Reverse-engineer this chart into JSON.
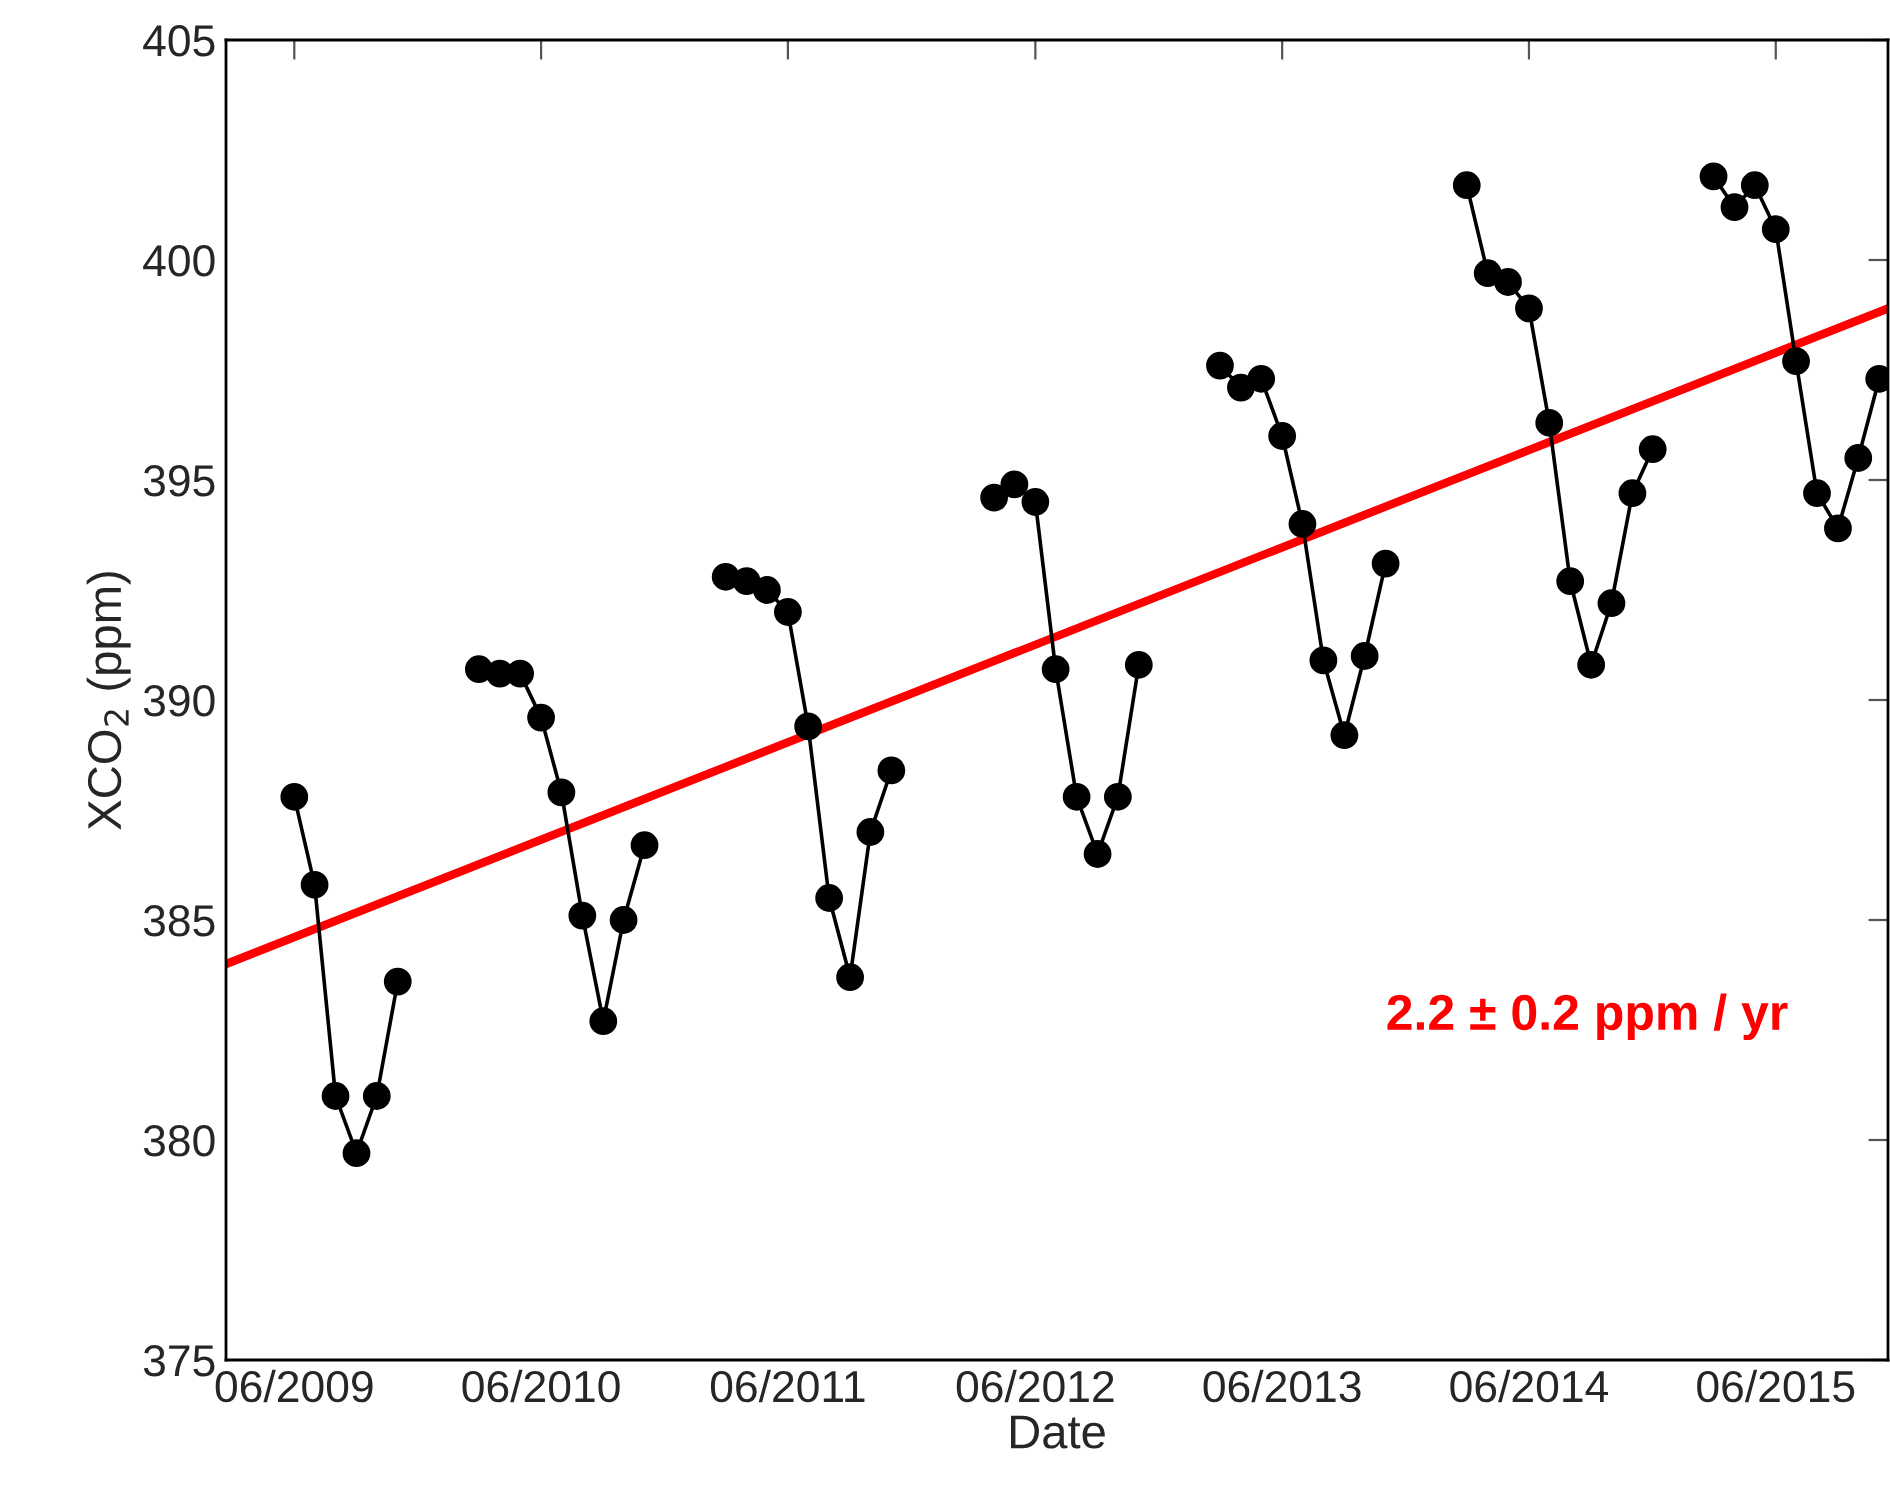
{
  "chart_data": {
    "type": "line",
    "xlabel": "Date",
    "ylabel": "XCO$_{2}$ (ppm)",
    "xlim": [
      "2009-02-20",
      "2015-11-14"
    ],
    "ylim": [
      375,
      405
    ],
    "xticks": [
      {
        "value": "2009-06",
        "label": "06/2009"
      },
      {
        "value": "2010-06",
        "label": "06/2010"
      },
      {
        "value": "2011-06",
        "label": "06/2011"
      },
      {
        "value": "2012-06",
        "label": "06/2012"
      },
      {
        "value": "2013-06",
        "label": "06/2013"
      },
      {
        "value": "2014-06",
        "label": "06/2014"
      },
      {
        "value": "2015-06",
        "label": "06/2015"
      }
    ],
    "yticks": [
      375,
      380,
      385,
      390,
      395,
      400,
      405
    ],
    "grid": false,
    "legend": false,
    "series": [
      {
        "color": "#000000",
        "marker": "circle",
        "x": [
          "2009-06",
          "2009-07",
          "2009-08",
          "2009-09",
          "2009-10",
          "2009-11"
        ],
        "values": [
          387.8,
          385.8,
          381.0,
          379.7,
          381.0,
          383.6
        ]
      },
      {
        "color": "#000000",
        "marker": "circle",
        "x": [
          "2010-03",
          "2010-04",
          "2010-05",
          "2010-06",
          "2010-07",
          "2010-08",
          "2010-09",
          "2010-10",
          "2010-11"
        ],
        "values": [
          390.7,
          390.6,
          390.6,
          389.6,
          387.9,
          385.1,
          382.7,
          385.0,
          386.7
        ]
      },
      {
        "color": "#000000",
        "marker": "circle",
        "x": [
          "2011-03",
          "2011-04",
          "2011-05",
          "2011-06",
          "2011-07",
          "2011-08",
          "2011-09",
          "2011-10",
          "2011-11"
        ],
        "values": [
          392.8,
          392.7,
          392.5,
          392.0,
          389.4,
          385.5,
          383.7,
          387.0,
          388.4
        ]
      },
      {
        "color": "#000000",
        "marker": "circle",
        "x": [
          "2012-04",
          "2012-05",
          "2012-06",
          "2012-07",
          "2012-08",
          "2012-09",
          "2012-10",
          "2012-11"
        ],
        "values": [
          394.6,
          394.9,
          394.5,
          390.7,
          387.8,
          386.5,
          387.8,
          390.8
        ]
      },
      {
        "color": "#000000",
        "marker": "circle",
        "x": [
          "2013-03",
          "2013-04",
          "2013-05",
          "2013-06",
          "2013-07",
          "2013-08",
          "2013-09",
          "2013-10",
          "2013-11"
        ],
        "values": [
          397.6,
          397.1,
          397.3,
          396.0,
          394.0,
          390.9,
          389.2,
          391.0,
          393.1
        ]
      },
      {
        "color": "#000000",
        "marker": "circle",
        "x": [
          "2014-03",
          "2014-04",
          "2014-05",
          "2014-06",
          "2014-07",
          "2014-08",
          "2014-09",
          "2014-10",
          "2014-11",
          "2014-12"
        ],
        "values": [
          401.7,
          399.7,
          399.5,
          398.9,
          396.3,
          392.7,
          390.8,
          392.2,
          394.7,
          395.7
        ]
      },
      {
        "color": "#000000",
        "marker": "circle",
        "x": [
          "2015-03",
          "2015-04",
          "2015-05",
          "2015-06",
          "2015-07",
          "2015-08",
          "2015-09",
          "2015-10",
          "2015-11"
        ],
        "values": [
          401.9,
          401.2,
          401.7,
          400.7,
          397.7,
          394.7,
          393.9,
          395.5,
          397.3
        ]
      },
      {
        "type": "line",
        "color": "#ff0000",
        "marker": "none",
        "x": [
          "2009-02-20",
          "2015-11-14"
        ],
        "values": [
          384.0,
          398.9
        ]
      }
    ],
    "annotations": [
      "2.2 ± 0.2 ppm / yr"
    ]
  }
}
